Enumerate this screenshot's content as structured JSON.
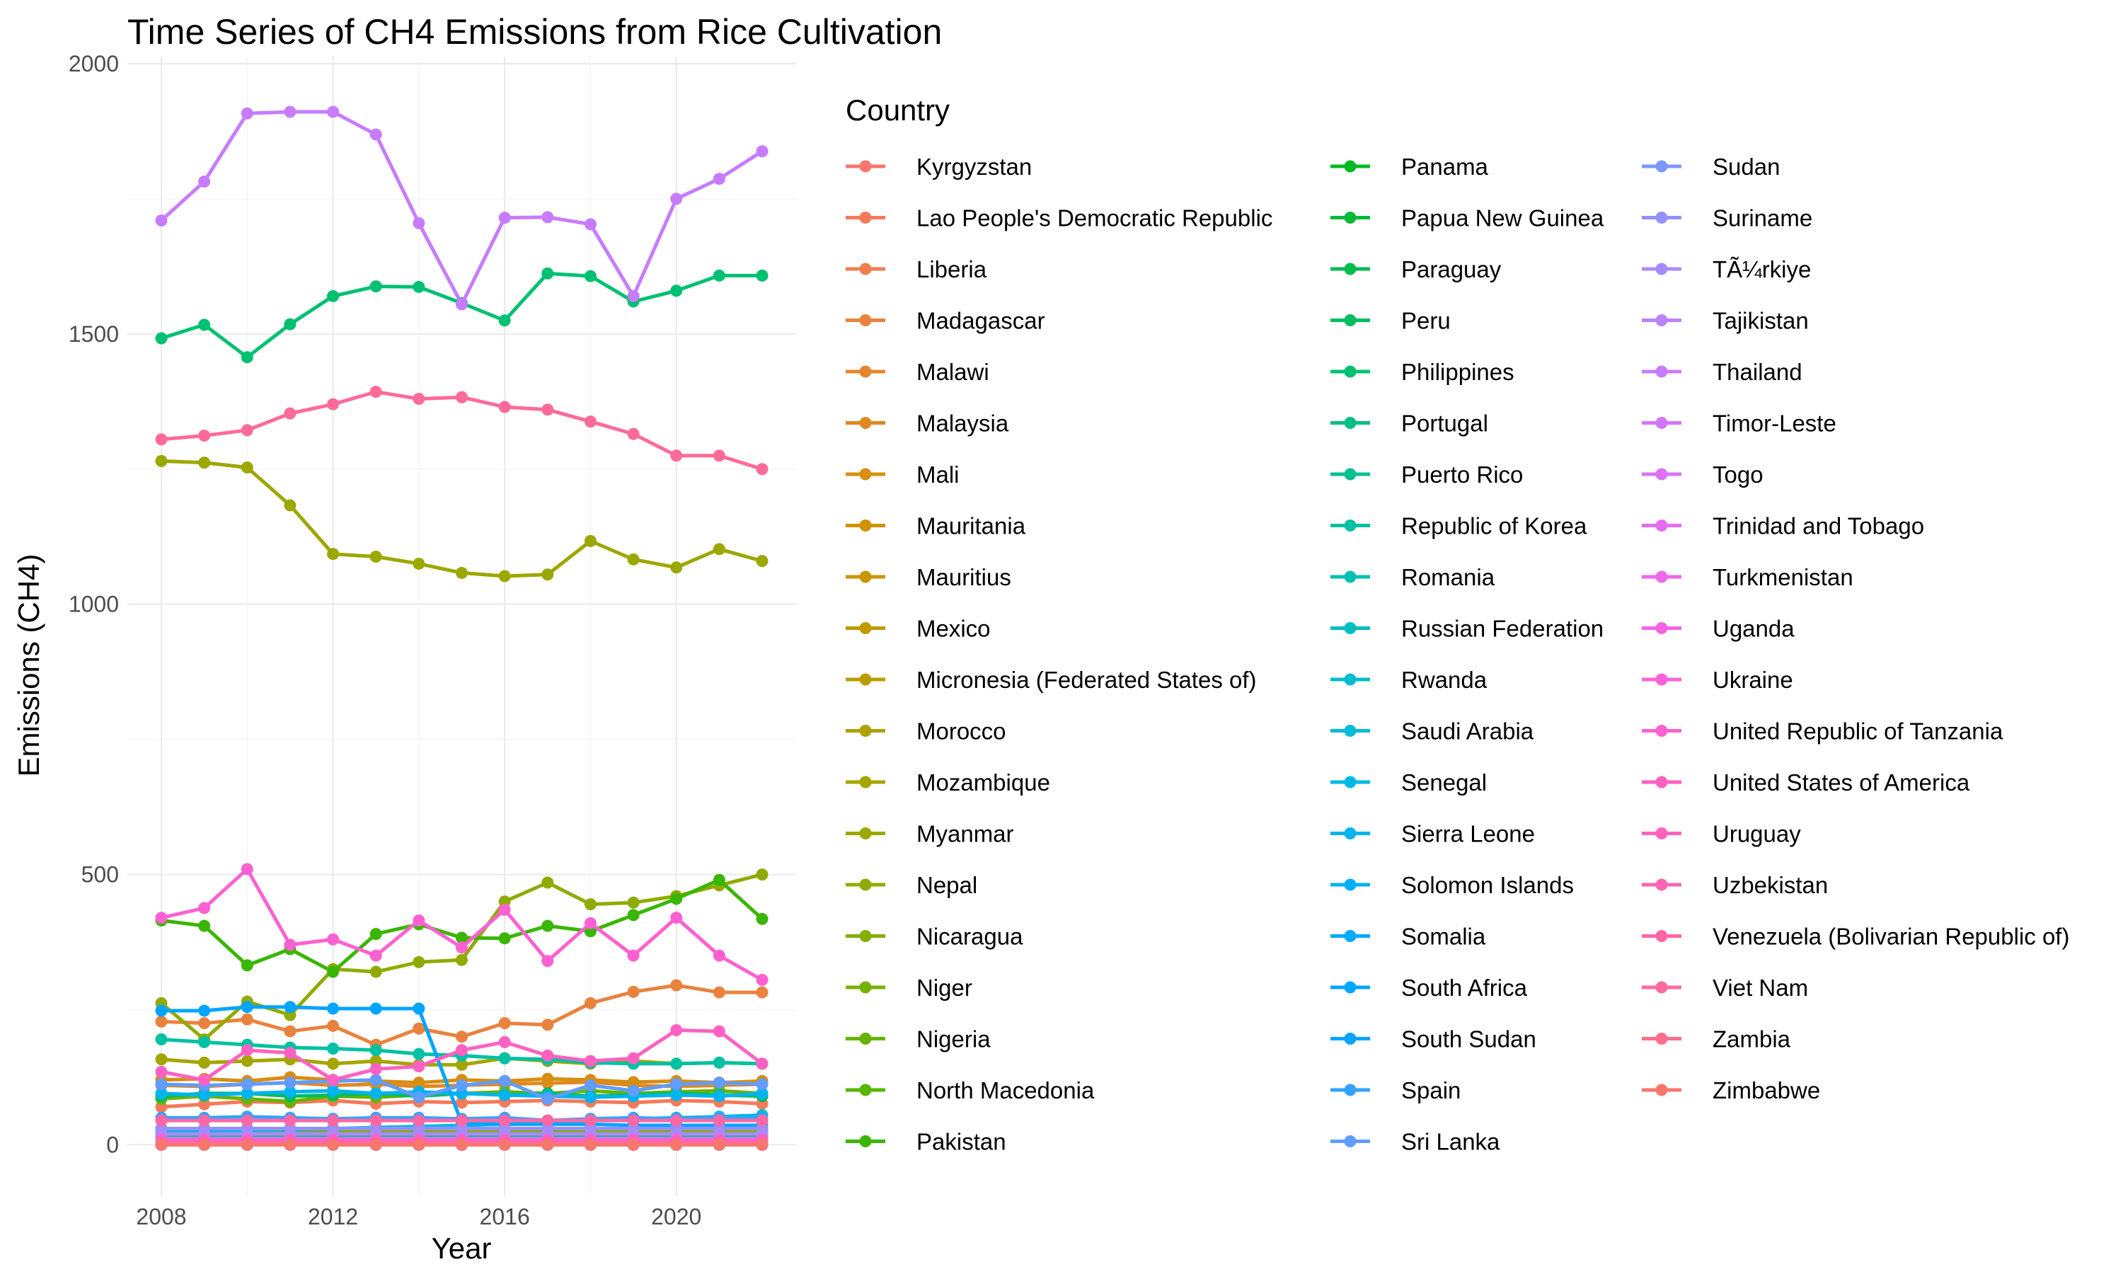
{
  "chart_data": {
    "type": "line",
    "title": "Time Series of CH4 Emissions from Rice Cultivation",
    "xlabel": "Year",
    "ylabel": "Emissions (CH4)",
    "legend_title": "Country",
    "legend_position": "right",
    "grid": true,
    "xlim": [
      2008,
      2022
    ],
    "ylim": [
      -95,
      2000
    ],
    "x_ticks": [
      2008,
      2012,
      2016,
      2020
    ],
    "y_ticks": [
      0,
      500,
      1000,
      1500,
      2000
    ],
    "x": [
      2008,
      2009,
      2010,
      2011,
      2012,
      2013,
      2014,
      2015,
      2016,
      2017,
      2018,
      2019,
      2020,
      2021,
      2022
    ],
    "series": [
      {
        "name": "Kyrgyzstan",
        "color": "#F8766D",
        "values": [
          1,
          1,
          1,
          1,
          1,
          1,
          1,
          1,
          1,
          1,
          1,
          1,
          1,
          1,
          1
        ]
      },
      {
        "name": "Lao People's Democratic Republic",
        "color": "#F47A5A",
        "values": [
          70,
          75,
          80,
          78,
          82,
          76,
          80,
          78,
          80,
          82,
          80,
          78,
          82,
          80,
          76
        ]
      },
      {
        "name": "Liberia",
        "color": "#EF7E4E",
        "values": [
          10,
          10,
          10,
          10,
          10,
          10,
          10,
          10,
          10,
          10,
          10,
          10,
          10,
          10,
          10
        ]
      },
      {
        "name": "Madagascar",
        "color": "#E9823E",
        "values": [
          228,
          225,
          232,
          210,
          220,
          185,
          215,
          200,
          225,
          222,
          262,
          283,
          295,
          282,
          282
        ]
      },
      {
        "name": "Malawi",
        "color": "#E48630",
        "values": [
          4,
          4,
          4,
          4,
          4,
          4,
          4,
          4,
          4,
          4,
          4,
          4,
          4,
          4,
          4
        ]
      },
      {
        "name": "Malaysia",
        "color": "#DE8A20",
        "values": [
          110,
          108,
          112,
          115,
          110,
          112,
          108,
          110,
          112,
          114,
          116,
          110,
          108,
          110,
          112
        ]
      },
      {
        "name": "Mali",
        "color": "#D78E12",
        "values": [
          120,
          122,
          118,
          125,
          120,
          118,
          115,
          120,
          118,
          122,
          120,
          116,
          118,
          115,
          118
        ]
      },
      {
        "name": "Mauritania",
        "color": "#D09200",
        "values": [
          20,
          20,
          20,
          20,
          20,
          20,
          20,
          20,
          20,
          20,
          20,
          20,
          20,
          20,
          20
        ]
      },
      {
        "name": "Mauritius",
        "color": "#C99600",
        "values": [
          1,
          1,
          1,
          1,
          1,
          1,
          1,
          1,
          1,
          1,
          1,
          1,
          1,
          1,
          1
        ]
      },
      {
        "name": "Mexico",
        "color": "#C09A00",
        "values": [
          8,
          8,
          8,
          8,
          8,
          8,
          8,
          8,
          8,
          8,
          8,
          8,
          8,
          8,
          8
        ]
      },
      {
        "name": "Micronesia (Federated States of)",
        "color": "#B89E00",
        "values": [
          0,
          0,
          0,
          0,
          0,
          0,
          0,
          0,
          0,
          0,
          0,
          0,
          0,
          0,
          0
        ]
      },
      {
        "name": "Morocco",
        "color": "#AFA100",
        "values": [
          2,
          2,
          2,
          2,
          2,
          2,
          2,
          2,
          2,
          2,
          2,
          2,
          2,
          2,
          2
        ]
      },
      {
        "name": "Mozambique",
        "color": "#A5A500",
        "values": [
          158,
          152,
          155,
          158,
          150,
          155,
          148,
          148,
          160,
          155,
          150,
          155,
          150,
          152,
          150
        ]
      },
      {
        "name": "Myanmar",
        "color": "#9BA800",
        "values": [
          1265,
          1262,
          1253,
          1183,
          1093,
          1088,
          1075,
          1058,
          1052,
          1055,
          1117,
          1083,
          1068,
          1102,
          1080
        ]
      },
      {
        "name": "Nepal",
        "color": "#90AB00",
        "values": [
          262,
          195,
          265,
          240,
          325,
          320,
          338,
          342,
          450,
          485,
          445,
          448,
          460,
          480,
          500
        ]
      },
      {
        "name": "Nicaragua",
        "color": "#84AE00",
        "values": [
          25,
          25,
          25,
          25,
          25,
          25,
          25,
          25,
          25,
          25,
          25,
          25,
          25,
          25,
          25
        ]
      },
      {
        "name": "Niger",
        "color": "#77B100",
        "values": [
          6,
          6,
          6,
          6,
          6,
          6,
          6,
          6,
          6,
          6,
          6,
          6,
          6,
          6,
          6
        ]
      },
      {
        "name": "Nigeria",
        "color": "#67B400",
        "values": [
          85,
          90,
          85,
          80,
          90,
          88,
          92,
          95,
          98,
          95,
          100,
          95,
          98,
          100,
          95
        ]
      },
      {
        "name": "North Macedonia",
        "color": "#54B600",
        "values": [
          0,
          0,
          0,
          0,
          0,
          0,
          0,
          0,
          0,
          0,
          0,
          0,
          0,
          0,
          0
        ]
      },
      {
        "name": "Pakistan",
        "color": "#39B600",
        "values": [
          415,
          405,
          332,
          362,
          320,
          390,
          408,
          383,
          382,
          405,
          395,
          425,
          455,
          490,
          418
        ]
      },
      {
        "name": "Panama",
        "color": "#00B81F",
        "values": [
          10,
          10,
          10,
          10,
          10,
          10,
          10,
          10,
          10,
          10,
          10,
          10,
          10,
          10,
          10
        ]
      },
      {
        "name": "Papua New Guinea",
        "color": "#00BA38",
        "values": [
          0,
          0,
          0,
          0,
          0,
          0,
          0,
          0,
          0,
          0,
          0,
          0,
          0,
          0,
          0
        ]
      },
      {
        "name": "Paraguay",
        "color": "#00BB4E",
        "values": [
          15,
          15,
          15,
          15,
          15,
          15,
          15,
          15,
          15,
          15,
          15,
          15,
          15,
          15,
          15
        ]
      },
      {
        "name": "Peru",
        "color": "#00BC62",
        "values": [
          90,
          95,
          95,
          90,
          92,
          95,
          90,
          95,
          92,
          95,
          90,
          92,
          95,
          92,
          90
        ]
      },
      {
        "name": "Philippines",
        "color": "#00C072",
        "values": [
          1492,
          1517,
          1457,
          1518,
          1570,
          1588,
          1587,
          1557,
          1525,
          1612,
          1607,
          1560,
          1580,
          1608,
          1608
        ]
      },
      {
        "name": "Portugal",
        "color": "#00C083",
        "values": [
          5,
          5,
          5,
          5,
          5,
          5,
          5,
          5,
          5,
          5,
          5,
          5,
          5,
          5,
          5
        ]
      },
      {
        "name": "Puerto Rico",
        "color": "#00C094",
        "values": [
          0,
          0,
          0,
          0,
          0,
          0,
          0,
          0,
          0,
          0,
          0,
          0,
          0,
          0,
          0
        ]
      },
      {
        "name": "Republic of Korea",
        "color": "#00C1A3",
        "values": [
          195,
          190,
          185,
          180,
          178,
          175,
          168,
          165,
          160,
          158,
          152,
          150,
          150,
          152,
          150
        ]
      },
      {
        "name": "Romania",
        "color": "#00C0B2",
        "values": [
          1,
          1,
          1,
          1,
          1,
          1,
          1,
          1,
          1,
          1,
          1,
          1,
          1,
          1,
          1
        ]
      },
      {
        "name": "Russian Federation",
        "color": "#00BFC0",
        "values": [
          30,
          30,
          30,
          30,
          30,
          30,
          30,
          30,
          30,
          30,
          30,
          30,
          30,
          30,
          30
        ]
      },
      {
        "name": "Rwanda",
        "color": "#00BDCD",
        "values": [
          3,
          3,
          3,
          3,
          3,
          3,
          3,
          3,
          3,
          3,
          3,
          3,
          3,
          3,
          3
        ]
      },
      {
        "name": "Saudi Arabia",
        "color": "#00BBD9",
        "values": [
          0,
          0,
          0,
          0,
          0,
          0,
          0,
          0,
          0,
          0,
          0,
          0,
          0,
          0,
          0
        ]
      },
      {
        "name": "Senegal",
        "color": "#00B8E4",
        "values": [
          25,
          26,
          27,
          28,
          30,
          32,
          34,
          36,
          38,
          40,
          45,
          48,
          50,
          52,
          55
        ]
      },
      {
        "name": "Sierra Leone",
        "color": "#00B4EF",
        "values": [
          95,
          92,
          95,
          98,
          100,
          95,
          98,
          95,
          92,
          90,
          88,
          90,
          92,
          90,
          95
        ]
      },
      {
        "name": "Solomon Islands",
        "color": "#00B0F6",
        "values": [
          0,
          0,
          0,
          0,
          0,
          0,
          0,
          0,
          0,
          0,
          0,
          0,
          0,
          0,
          0
        ]
      },
      {
        "name": "Somalia",
        "color": "#00ABFD",
        "values": [
          0,
          0,
          0,
          0,
          0,
          0,
          0,
          0,
          0,
          0,
          0,
          0,
          0,
          0,
          0
        ]
      },
      {
        "name": "South Africa",
        "color": "#00A6FF",
        "values": [
          0,
          0,
          0,
          0,
          0,
          0,
          0,
          0,
          0,
          0,
          0,
          0,
          0,
          0,
          0
        ]
      },
      {
        "name": "South Sudan",
        "color": "#00A5FF",
        "values": [
          248,
          248,
          255,
          255,
          252,
          252,
          252,
          40,
          38,
          38,
          38,
          36,
          36,
          36,
          36
        ]
      },
      {
        "name": "Spain",
        "color": "#35A2FF",
        "values": [
          50,
          50,
          52,
          50,
          48,
          50,
          50,
          48,
          50,
          45,
          48,
          50,
          48,
          50,
          48
        ]
      },
      {
        "name": "Sri Lanka",
        "color": "#619CFF",
        "values": [
          112,
          110,
          112,
          115,
          118,
          120,
          88,
          110,
          118,
          85,
          110,
          100,
          112,
          115,
          112
        ]
      },
      {
        "name": "Sudan",
        "color": "#7C97FF",
        "values": [
          12,
          12,
          12,
          12,
          12,
          12,
          12,
          12,
          12,
          12,
          12,
          12,
          12,
          12,
          12
        ]
      },
      {
        "name": "Suriname",
        "color": "#9590FF",
        "values": [
          30,
          30,
          30,
          30,
          30,
          30,
          30,
          30,
          30,
          30,
          30,
          30,
          30,
          30,
          30
        ]
      },
      {
        "name": "TÃ¼rkiye",
        "color": "#A88AFF",
        "values": [
          20,
          20,
          20,
          20,
          20,
          20,
          20,
          20,
          20,
          20,
          20,
          20,
          20,
          20,
          20
        ]
      },
      {
        "name": "Tajikistan",
        "color": "#B983FF",
        "values": [
          1,
          1,
          1,
          1,
          1,
          1,
          1,
          1,
          1,
          1,
          1,
          1,
          1,
          1,
          1
        ]
      },
      {
        "name": "Thailand",
        "color": "#C77CFF",
        "values": [
          1710,
          1782,
          1908,
          1911,
          1911,
          1869,
          1705,
          1555,
          1715,
          1716,
          1703,
          1570,
          1750,
          1787,
          1838
        ]
      },
      {
        "name": "Timor-Leste",
        "color": "#D376FF",
        "values": [
          2,
          2,
          2,
          2,
          2,
          2,
          2,
          2,
          2,
          2,
          2,
          2,
          2,
          2,
          2
        ]
      },
      {
        "name": "Togo",
        "color": "#DE71F9",
        "values": [
          3,
          3,
          3,
          3,
          3,
          3,
          3,
          3,
          3,
          3,
          3,
          3,
          3,
          3,
          3
        ]
      },
      {
        "name": "Trinidad and Tobago",
        "color": "#E76BF3",
        "values": [
          0,
          0,
          0,
          0,
          0,
          0,
          0,
          0,
          0,
          0,
          0,
          0,
          0,
          0,
          0
        ]
      },
      {
        "name": "Turkmenistan",
        "color": "#EF67EB",
        "values": [
          10,
          10,
          10,
          10,
          10,
          10,
          10,
          10,
          10,
          10,
          10,
          10,
          10,
          10,
          10
        ]
      },
      {
        "name": "Uganda",
        "color": "#F564E3",
        "values": [
          6,
          6,
          6,
          6,
          6,
          6,
          6,
          6,
          6,
          6,
          6,
          6,
          6,
          6,
          6
        ]
      },
      {
        "name": "Ukraine",
        "color": "#FA62DB",
        "values": [
          2,
          2,
          2,
          2,
          2,
          2,
          2,
          2,
          2,
          2,
          2,
          2,
          2,
          2,
          2
        ]
      },
      {
        "name": "United Republic of Tanzania",
        "color": "#FD61D1",
        "values": [
          420,
          438,
          510,
          370,
          380,
          350,
          415,
          365,
          435,
          340,
          410,
          350,
          420,
          350,
          305
        ]
      },
      {
        "name": "United States of America",
        "color": "#FF61C3",
        "values": [
          135,
          120,
          175,
          170,
          120,
          140,
          145,
          175,
          190,
          165,
          155,
          160,
          212,
          210,
          150
        ]
      },
      {
        "name": "Uruguay",
        "color": "#FF62BC",
        "values": [
          8,
          8,
          8,
          8,
          8,
          8,
          8,
          8,
          8,
          8,
          8,
          8,
          8,
          8,
          8
        ]
      },
      {
        "name": "Uzbekistan",
        "color": "#FF64B0",
        "values": [
          1,
          1,
          1,
          1,
          1,
          1,
          1,
          1,
          1,
          1,
          1,
          1,
          1,
          1,
          1
        ]
      },
      {
        "name": "Venezuela (Bolivarian Republic of)",
        "color": "#FF67A4",
        "values": [
          45,
          45,
          45,
          45,
          45,
          45,
          45,
          45,
          45,
          45,
          45,
          45,
          45,
          45,
          45
        ]
      },
      {
        "name": "Viet Nam",
        "color": "#FF6A98",
        "values": [
          1305,
          1312,
          1322,
          1353,
          1370,
          1393,
          1380,
          1383,
          1365,
          1360,
          1338,
          1315,
          1275,
          1275,
          1250
        ]
      },
      {
        "name": "Zambia",
        "color": "#FC6E8B",
        "values": [
          1,
          1,
          1,
          1,
          1,
          1,
          1,
          1,
          1,
          1,
          1,
          1,
          1,
          1,
          1
        ]
      },
      {
        "name": "Zimbabwe",
        "color": "#F8766D",
        "values": [
          0,
          0,
          0,
          0,
          0,
          0,
          0,
          0,
          0,
          0,
          0,
          0,
          0,
          0,
          0
        ]
      }
    ]
  }
}
